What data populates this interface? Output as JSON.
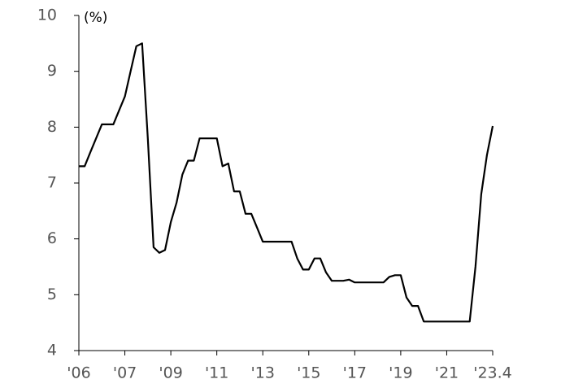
{
  "chart_data": {
    "type": "line",
    "y_unit_label": "(%)",
    "categories": [
      "'06",
      null,
      null,
      null,
      null,
      null,
      null,
      null,
      "'07",
      null,
      null,
      null,
      null,
      null,
      null,
      null,
      "'09",
      null,
      null,
      null,
      null,
      null,
      null,
      null,
      "'11",
      null,
      null,
      null,
      null,
      null,
      null,
      null,
      "'13",
      null,
      null,
      null,
      null,
      null,
      null,
      null,
      "'15",
      null,
      null,
      null,
      null,
      null,
      null,
      null,
      "'17",
      null,
      null,
      null,
      null,
      null,
      null,
      null,
      "'19",
      null,
      null,
      null,
      null,
      null,
      null,
      null,
      "'21",
      null,
      null,
      null,
      null,
      null,
      null,
      null,
      "'23.4"
    ],
    "series": [
      {
        "color": "#000000",
        "values": [
          7.3,
          7.3,
          7.55,
          7.8,
          8.05,
          8.05,
          8.05,
          8.3,
          8.55,
          9.0,
          9.45,
          9.5,
          7.8,
          5.85,
          5.75,
          5.8,
          6.3,
          6.65,
          7.15,
          7.4,
          7.4,
          7.8,
          7.8,
          7.8,
          7.8,
          7.3,
          7.35,
          6.85,
          6.85,
          6.45,
          6.45,
          6.2,
          5.95,
          5.95,
          5.95,
          5.95,
          5.95,
          5.95,
          5.65,
          5.45,
          5.45,
          5.65,
          5.65,
          5.4,
          5.25,
          5.25,
          5.25,
          5.27,
          5.22,
          5.22,
          5.22,
          5.22,
          5.22,
          5.22,
          5.32,
          5.35,
          5.35,
          4.95,
          4.8,
          4.8,
          4.52,
          4.52,
          4.52,
          4.52,
          4.52,
          4.52,
          4.52,
          4.52,
          4.52,
          5.5,
          6.8,
          7.5,
          8.02
        ]
      }
    ],
    "ylim": [
      4,
      10
    ],
    "yticks": [
      4,
      5,
      6,
      7,
      8,
      9,
      10
    ],
    "grid": false
  }
}
